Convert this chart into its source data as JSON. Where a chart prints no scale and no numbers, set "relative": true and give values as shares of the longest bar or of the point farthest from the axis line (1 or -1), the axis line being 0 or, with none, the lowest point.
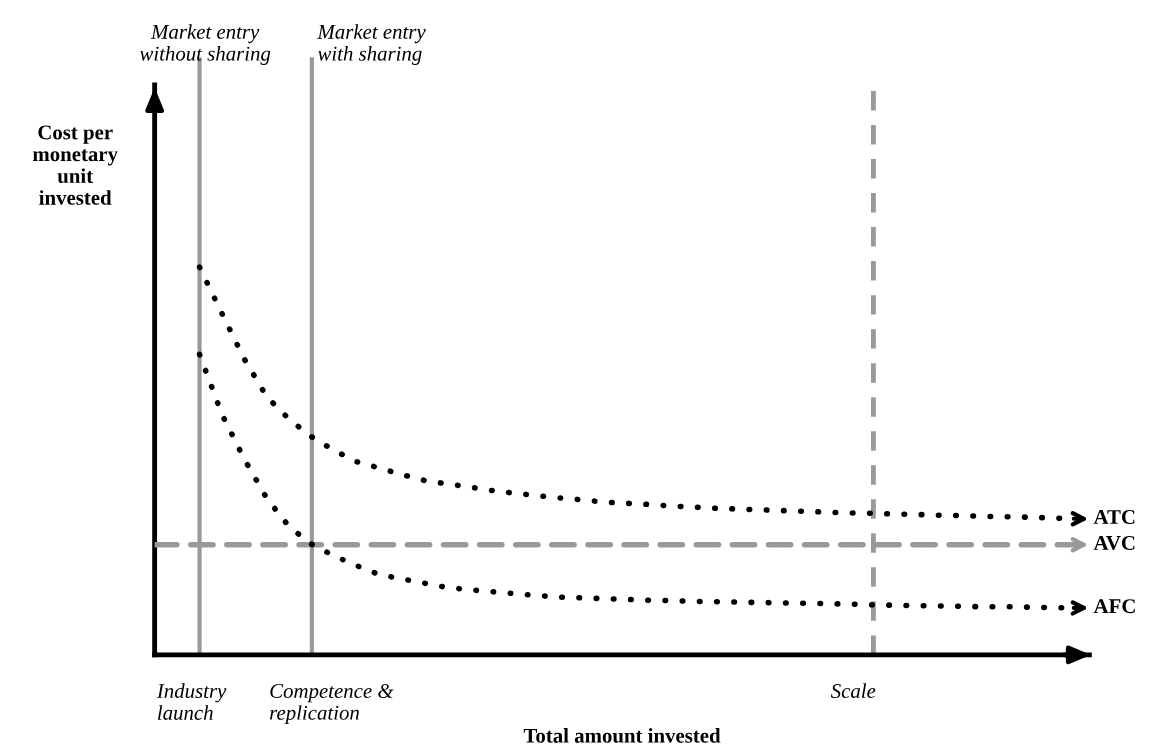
{
  "chart_data": {
    "type": "line",
    "relative": true,
    "xlabel": "Total amount invested",
    "ylabel": "Cost per\nmonetary\nunit\ninvested",
    "marker": "none",
    "categories": [
      null,
      null,
      null,
      null,
      null,
      null,
      null,
      null,
      null,
      null,
      null,
      null,
      null,
      null,
      null,
      null,
      null,
      null,
      null,
      null,
      null,
      null,
      null,
      null,
      null,
      null,
      null,
      null,
      null,
      null,
      null,
      null,
      null,
      null,
      null,
      null,
      null,
      null,
      null,
      null,
      null,
      null
    ],
    "series": [
      {
        "name": "ATC",
        "color": "#000000",
        "line_style": "dotted",
        "values": [
          null,
          null,
          1.0,
          0.88,
          0.762,
          0.665,
          0.607,
          0.562,
          0.527,
          0.498,
          0.482,
          0.465,
          0.45,
          0.441,
          0.433,
          0.424,
          0.417,
          0.411,
          0.405,
          0.4,
          0.394,
          0.391,
          0.388,
          0.384,
          0.381,
          0.378,
          0.376,
          0.374,
          0.372,
          0.37,
          0.368,
          0.366,
          0.365,
          0.363,
          0.362,
          0.36,
          0.359,
          0.357,
          0.356,
          0.355,
          0.353,
          0.351
        ]
      },
      {
        "name": "AVC",
        "color": "#999999",
        "line_style": "dashed",
        "values": [
          0.284,
          0.284,
          0.284,
          0.284,
          0.284,
          0.284,
          0.284,
          0.284,
          0.284,
          0.284,
          0.284,
          0.284,
          0.284,
          0.284,
          0.284,
          0.284,
          0.284,
          0.284,
          0.284,
          0.284,
          0.284,
          0.284,
          0.284,
          0.284,
          0.284,
          0.284,
          0.284,
          0.284,
          0.284,
          0.284,
          0.284,
          0.284,
          0.284,
          0.284,
          0.284,
          0.284,
          0.284,
          0.284,
          0.284,
          0.284,
          0.284,
          0.284
        ]
      },
      {
        "name": "AFC",
        "color": "#000000",
        "line_style": "dotted",
        "values": [
          null,
          null,
          0.775,
          0.62,
          0.504,
          0.403,
          0.33,
          0.285,
          0.255,
          0.23,
          0.207,
          0.196,
          0.185,
          0.174,
          0.168,
          0.163,
          0.158,
          0.153,
          0.149,
          0.147,
          0.145,
          0.143,
          0.141,
          0.14,
          0.138,
          0.137,
          0.136,
          0.135,
          0.134,
          0.133,
          0.132,
          0.131,
          0.129,
          0.128,
          0.127,
          0.126,
          0.125,
          0.124,
          0.124,
          0.123,
          0.122,
          0.121
        ]
      }
    ],
    "legend": "right",
    "annotations": [
      "Market entry\nwithout sharing",
      "Market entry\nwith sharing",
      "Industry\nlaunch",
      "Competence &\nreplication",
      "Scale"
    ]
  }
}
